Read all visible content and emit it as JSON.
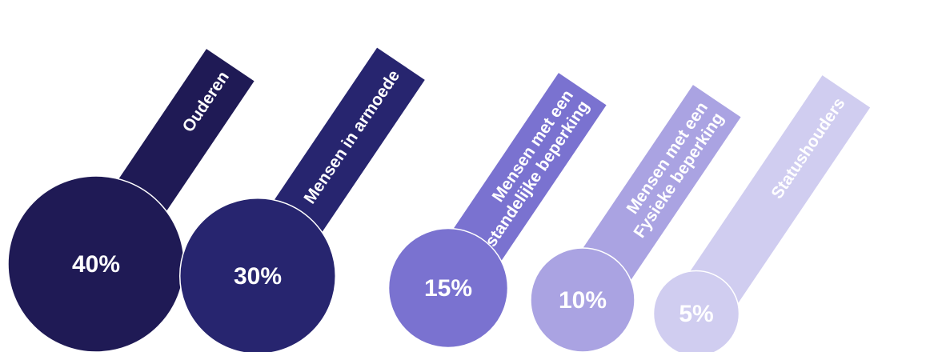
{
  "chart_data": {
    "type": "bar",
    "categories": [
      [
        "Ouderen"
      ],
      [
        "Mensen in armoede"
      ],
      [
        "Mensen met een",
        "verstandelijke beperking"
      ],
      [
        "Mensen met een",
        "Fysieke beperking"
      ],
      [
        "Statushouders"
      ]
    ],
    "values": [
      40,
      30,
      15,
      10,
      5
    ],
    "value_labels": [
      "40%",
      "30%",
      "15%",
      "10%",
      "5%"
    ],
    "colors": [
      "#1f1a55",
      "#27256f",
      "#7a72d0",
      "#aaa3e2",
      "#d0cdf0"
    ],
    "legend": "none",
    "grid": false
  }
}
